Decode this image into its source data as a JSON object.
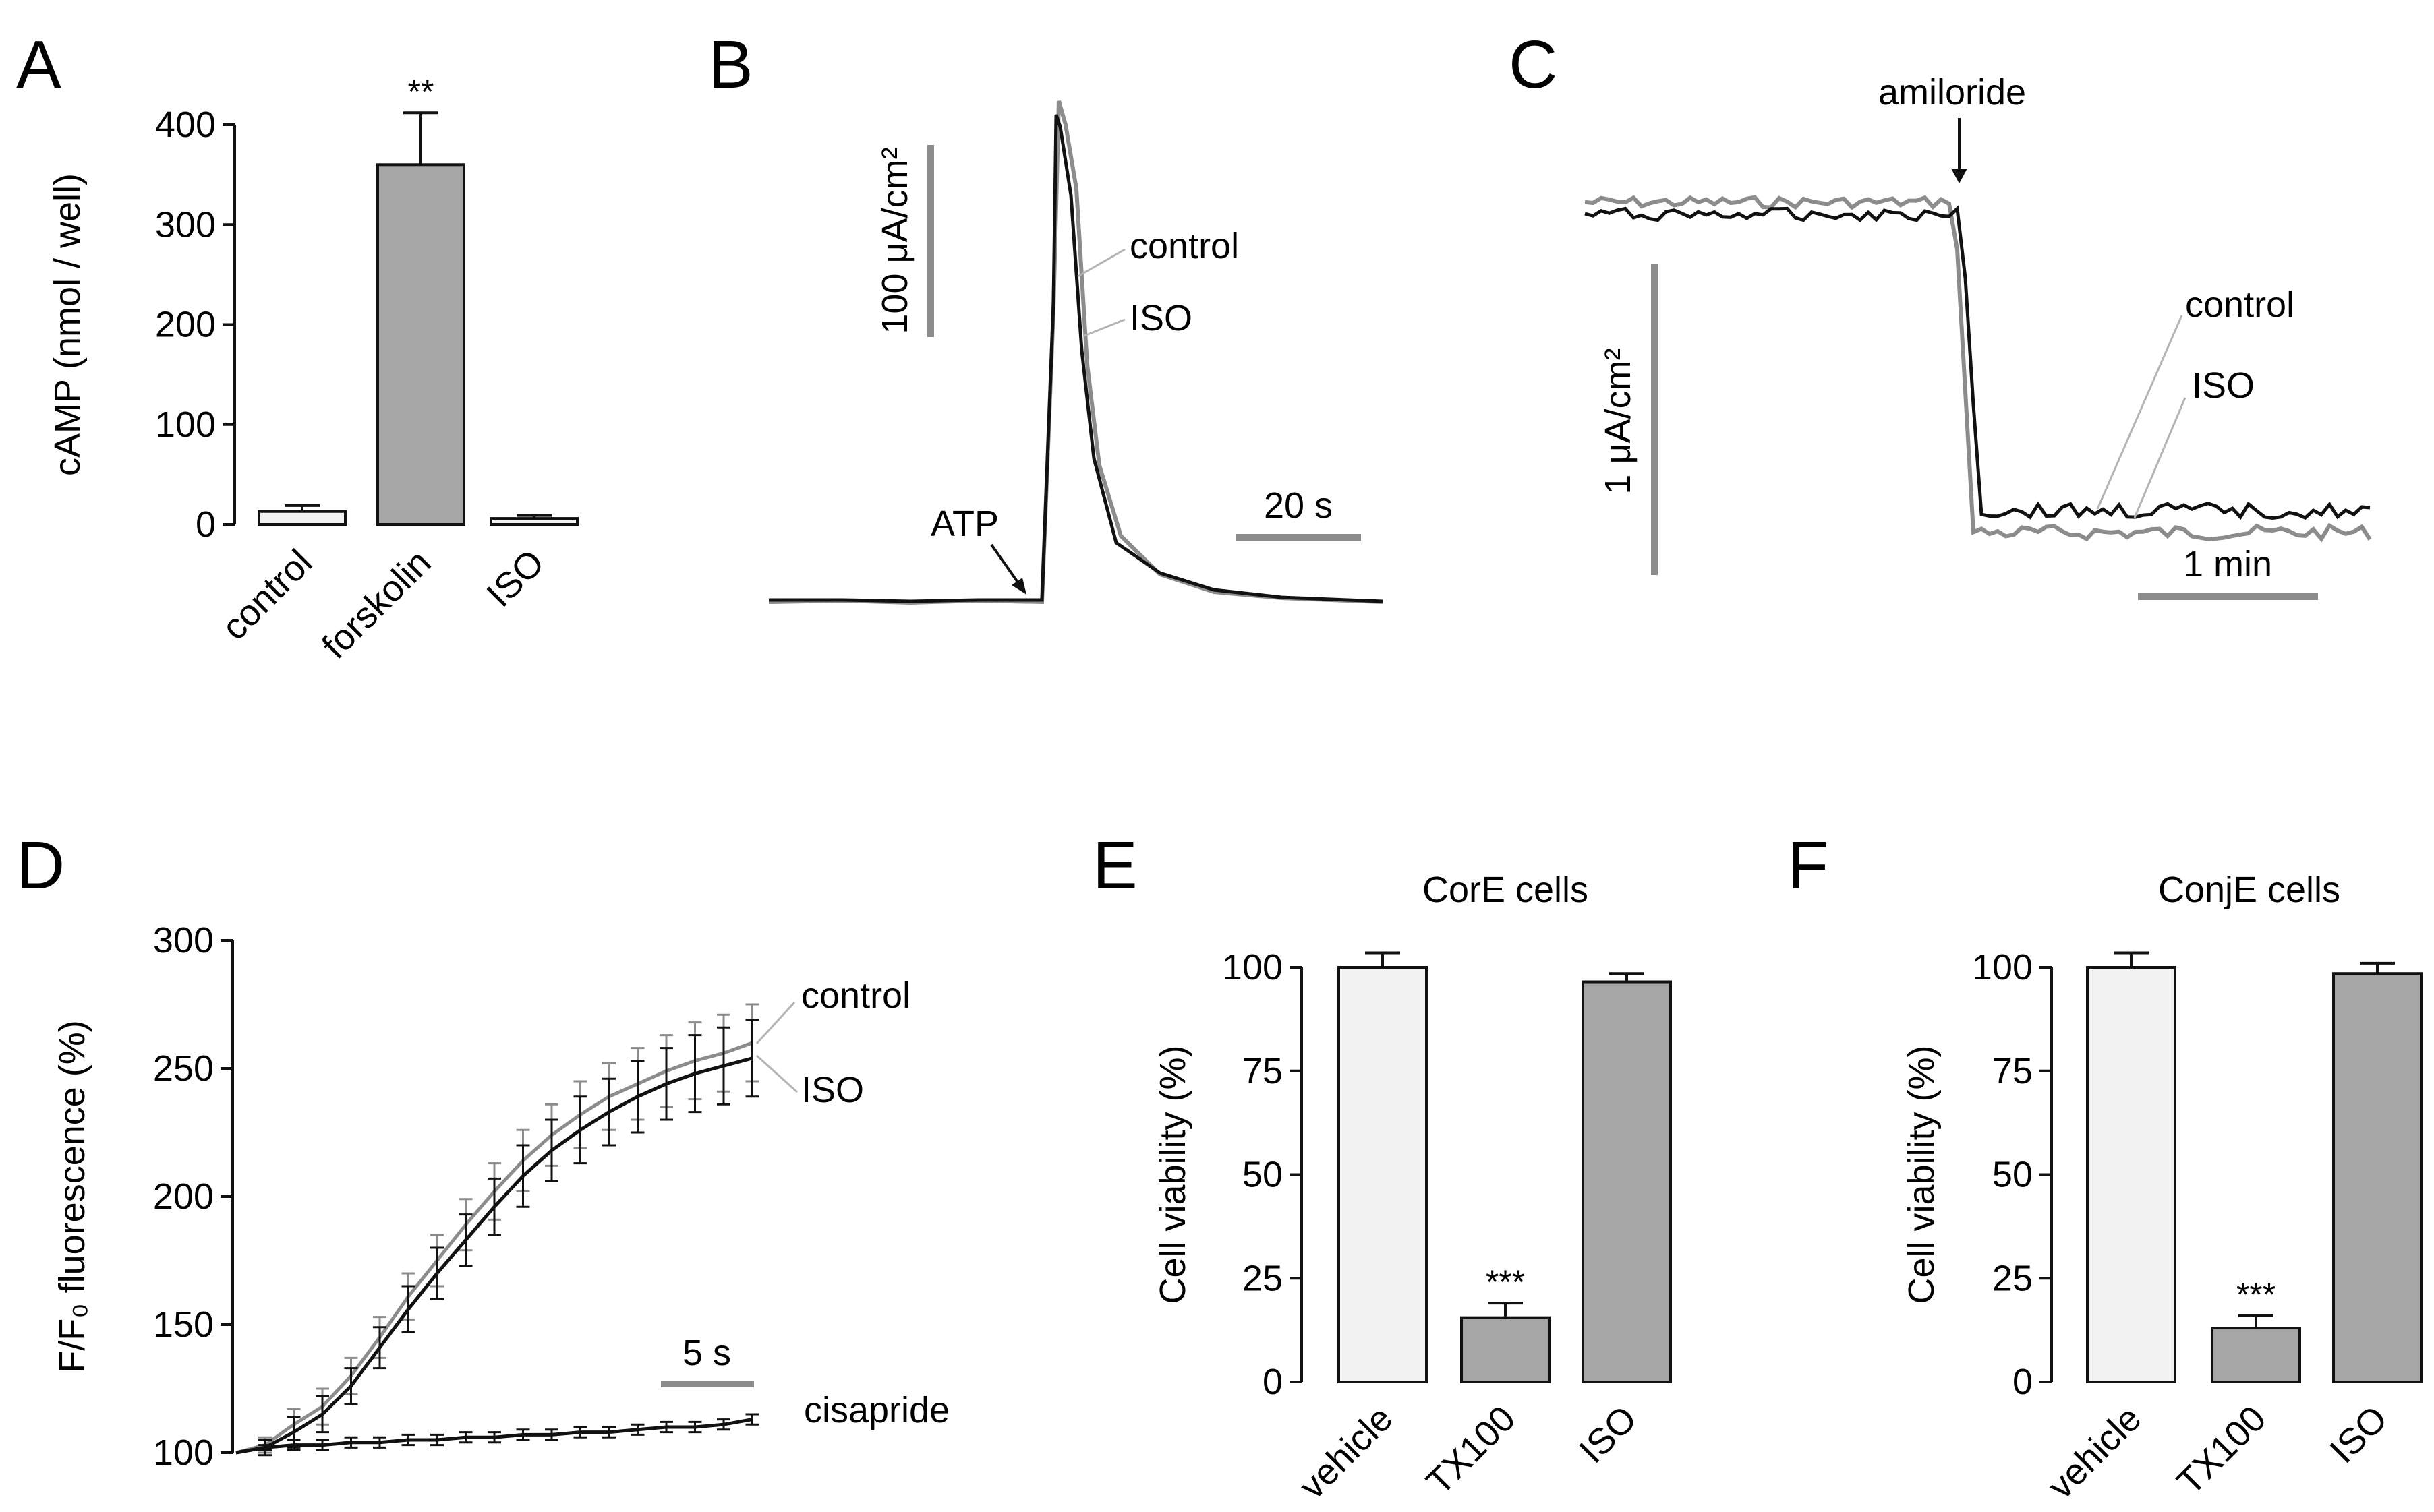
{
  "colors": {
    "black": "#111111",
    "gray": "#8c8c8c",
    "light_gray": "#b4b4b4",
    "bar_gray": "#a6a6a6",
    "bar_light": "#f2f2f2"
  },
  "chart_data": [
    {
      "panel": "A",
      "type": "bar",
      "ylabel": "cAMP (nmol / well)",
      "categories": [
        "control",
        "forskolin",
        "ISO"
      ],
      "values": [
        13,
        360,
        6
      ],
      "errors": [
        6,
        52,
        3
      ],
      "ylim": [
        0,
        400
      ],
      "yticks": [
        0,
        100,
        200,
        300,
        400
      ],
      "annotations": [
        {
          "category": "forskolin",
          "text": "**"
        }
      ]
    },
    {
      "panel": "B",
      "type": "line",
      "series_labels": [
        "control",
        "ISO"
      ],
      "annotation_label": "ATP",
      "scale_bar_y_label": "100 μA/cm²",
      "scale_bar_x_label": "20 s",
      "note": "ATP-induced short-circuit current transient; both traces overlap"
    },
    {
      "panel": "C",
      "type": "line",
      "series_labels": [
        "control",
        "ISO"
      ],
      "annotation_label": "amiloride",
      "scale_bar_y_label": "1 μA/cm²",
      "scale_bar_x_label": "1 min",
      "note": "Current drops after amiloride; traces overlap"
    },
    {
      "panel": "D",
      "type": "line",
      "ylabel": "F/F₀ fluorescence (%)",
      "ylim": [
        100,
        300
      ],
      "yticks": [
        100,
        150,
        200,
        250,
        300
      ],
      "scale_bar_x_label": "5 s",
      "x": [
        0,
        1,
        2,
        3,
        4,
        5,
        6,
        7,
        8,
        9,
        10,
        11,
        12,
        13,
        14,
        15,
        16,
        17
      ],
      "series": [
        {
          "name": "control",
          "values": [
            103,
            111,
            118,
            130,
            145,
            161,
            175,
            189,
            202,
            214,
            224,
            232,
            239,
            244,
            249,
            253,
            256,
            260
          ],
          "errors": [
            3,
            6,
            7,
            7,
            8,
            9,
            10,
            10,
            11,
            12,
            12,
            13,
            13,
            14,
            14,
            15,
            15,
            15
          ]
        },
        {
          "name": "ISO",
          "values": [
            102,
            108,
            115,
            126,
            141,
            156,
            170,
            183,
            196,
            208,
            218,
            226,
            233,
            239,
            244,
            248,
            251,
            254
          ],
          "errors": [
            3,
            6,
            7,
            7,
            8,
            9,
            10,
            10,
            11,
            12,
            12,
            13,
            13,
            14,
            14,
            15,
            15,
            15
          ]
        },
        {
          "name": "cisapride",
          "values": [
            102,
            103,
            103,
            104,
            104,
            105,
            105,
            106,
            106,
            107,
            107,
            108,
            108,
            109,
            110,
            110,
            111,
            113
          ],
          "errors": [
            1,
            2,
            2,
            2,
            2,
            2,
            2,
            2,
            2,
            2,
            2,
            2,
            2,
            2,
            2,
            2,
            2,
            2
          ]
        }
      ]
    },
    {
      "panel": "E",
      "type": "bar",
      "title": "CorE cells",
      "ylabel": "Cell viability (%)",
      "categories": [
        "vehicle",
        "TX100",
        "ISO"
      ],
      "values": [
        100,
        15.5,
        96.5
      ],
      "errors": [
        3.5,
        3.5,
        2
      ],
      "ylim": [
        0,
        100
      ],
      "yticks": [
        0,
        25,
        50,
        75,
        100
      ],
      "annotations": [
        {
          "category": "TX100",
          "text": "***"
        }
      ]
    },
    {
      "panel": "F",
      "type": "bar",
      "title": "ConjE cells",
      "ylabel": "Cell viability (%)",
      "categories": [
        "vehicle",
        "TX100",
        "ISO"
      ],
      "values": [
        100,
        13,
        98.5
      ],
      "errors": [
        3.5,
        3,
        2.5
      ],
      "ylim": [
        0,
        100
      ],
      "yticks": [
        0,
        25,
        50,
        75,
        100
      ],
      "annotations": [
        {
          "category": "TX100",
          "text": "***"
        }
      ]
    }
  ]
}
